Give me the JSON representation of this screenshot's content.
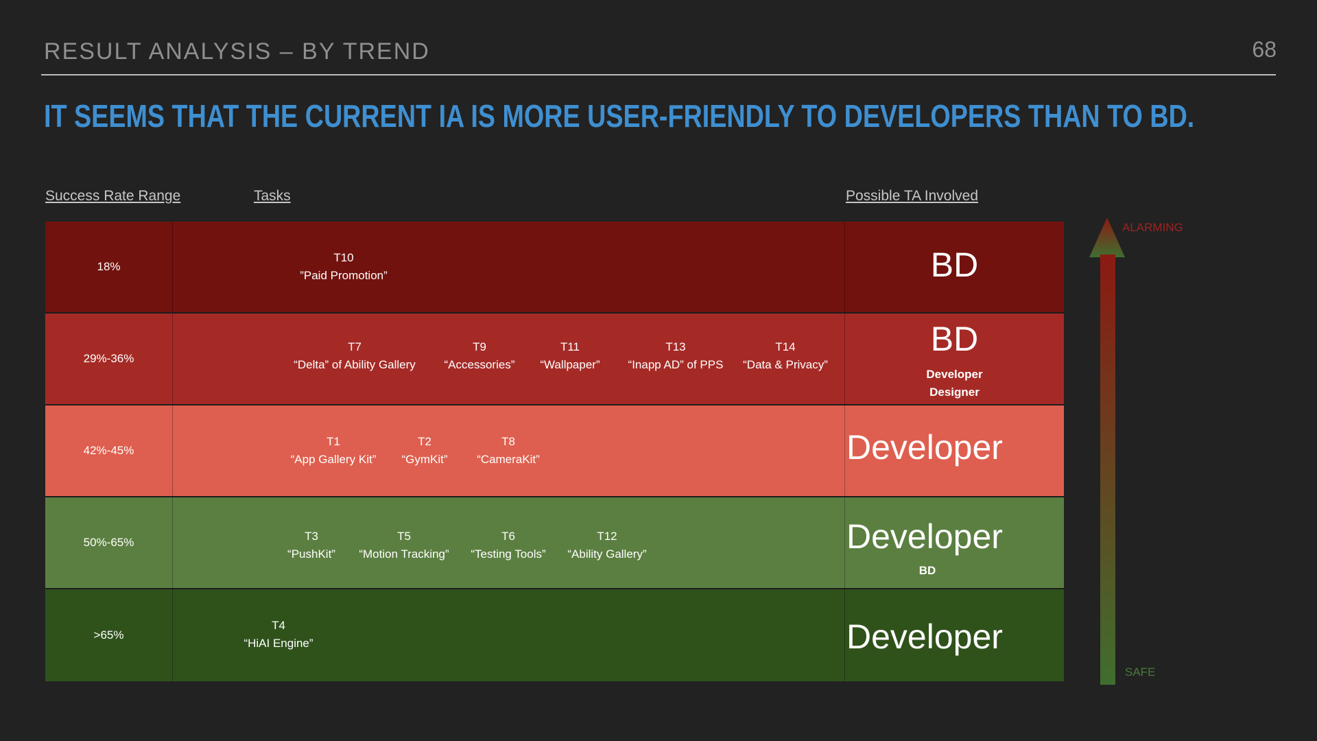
{
  "header": {
    "title": "RESULT ANALYSIS – BY TREND",
    "page_number": "68"
  },
  "headline": "IT SEEMS THAT THE CURRENT IA IS MORE USER-FRIENDLY TO DEVELOPERS THAN TO BD.",
  "columns": {
    "rate": "Success Rate Range",
    "tasks": "Tasks",
    "ta": "Possible TA Involved"
  },
  "colors": {
    "row_18": "#72120e",
    "row_29_36": "#a52a26",
    "row_42_45": "#de5f4f",
    "row_50_65": "#5b7f41",
    "row_65": "#2f521b",
    "alarming": "#8b1a12",
    "safe": "#3f6e2f"
  },
  "rows": [
    {
      "rate": "18%",
      "tasks": [
        {
          "id": "T10",
          "name": "”Paid Promotion”"
        }
      ],
      "ta_main": "BD",
      "ta_sub": []
    },
    {
      "rate": "29%-36%",
      "tasks": [
        {
          "id": "T7",
          "name": "“Delta” of Ability Gallery"
        },
        {
          "id": "T9",
          "name": "“Accessories”"
        },
        {
          "id": "T11",
          "name": "“Wallpaper”"
        },
        {
          "id": "T13",
          "name": "“Inapp AD” of PPS"
        },
        {
          "id": "T14",
          "name": "“Data & Privacy”"
        }
      ],
      "ta_main": "BD",
      "ta_sub": [
        "Developer",
        "Designer"
      ]
    },
    {
      "rate": "42%-45%",
      "tasks": [
        {
          "id": "T1",
          "name": "“App Gallery Kit”"
        },
        {
          "id": "T2",
          "name": "“GymKit”"
        },
        {
          "id": "T8",
          "name": "“CameraKit”"
        }
      ],
      "ta_main": "Developer",
      "ta_sub": []
    },
    {
      "rate": "50%-65%",
      "tasks": [
        {
          "id": "T3",
          "name": "“PushKit”"
        },
        {
          "id": "T5",
          "name": "“Motion Tracking”"
        },
        {
          "id": "T6",
          "name": "“Testing Tools”"
        },
        {
          "id": "T12",
          "name": "“Ability Gallery”"
        }
      ],
      "ta_main": "Developer",
      "ta_sub": [
        "BD"
      ]
    },
    {
      "rate": ">65%",
      "tasks": [
        {
          "id": "T4",
          "name": "“HiAI Engine”"
        }
      ],
      "ta_main": "Developer",
      "ta_sub": []
    }
  ],
  "scale": {
    "top_label": "ALARMING",
    "bottom_label": "SAFE"
  }
}
